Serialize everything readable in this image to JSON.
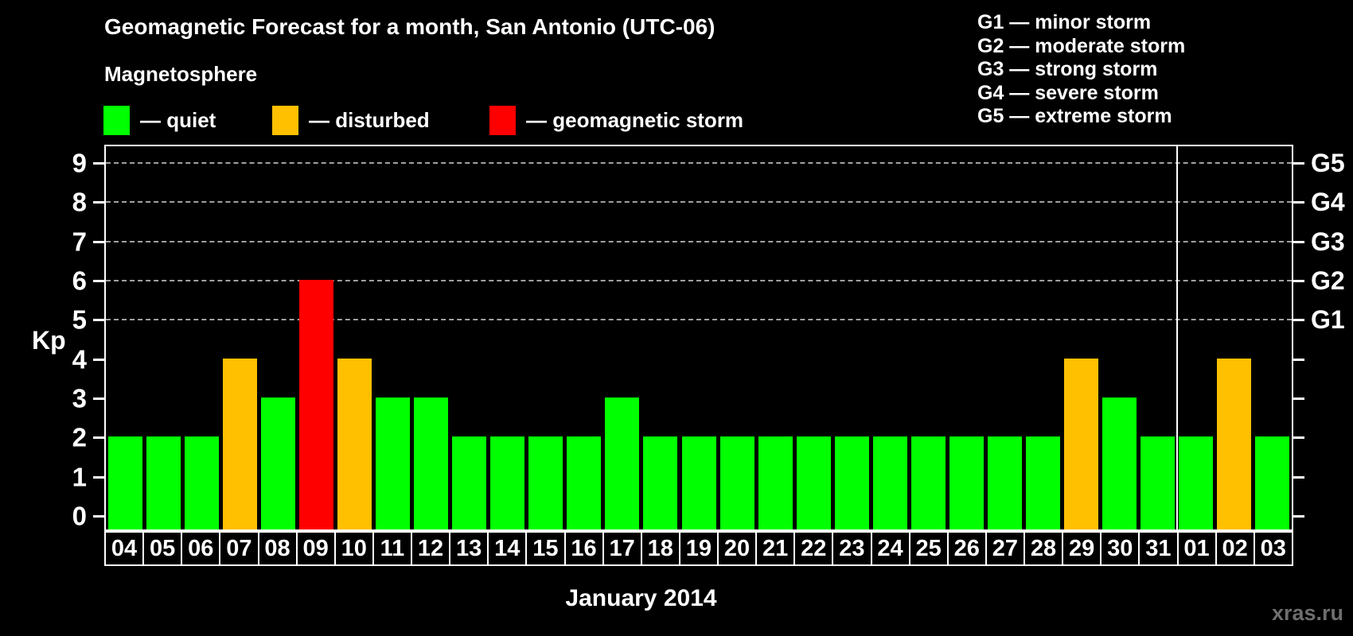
{
  "title": "Geomagnetic Forecast for a month, San Antonio (UTC-06)",
  "subtitle": "Magnetosphere",
  "legend": {
    "items": [
      {
        "status": "quiet",
        "label": "— quiet",
        "color": "#00ff00"
      },
      {
        "status": "disturbed",
        "label": "— disturbed",
        "color": "#ffc000"
      },
      {
        "status": "storm",
        "label": "— geomagnetic storm",
        "color": "#ff0000"
      }
    ]
  },
  "storm_scale": [
    "G1 — minor storm",
    "G2 — moderate storm",
    "G3 — strong storm",
    "G4 — severe storm",
    "G5 — extreme storm"
  ],
  "watermark": "xras.ru",
  "chart_data": {
    "type": "bar",
    "title": "Geomagnetic Forecast for a month, San Antonio (UTC-06)",
    "xlabel": "January 2014",
    "ylabel": "Kp",
    "ylim": [
      0,
      9
    ],
    "yticks": [
      0,
      1,
      2,
      3,
      4,
      5,
      6,
      7,
      8,
      9
    ],
    "gridlines": [
      5,
      6,
      7,
      8,
      9
    ],
    "grid": "dashed horizontal at Kp 5-9 only",
    "legend_position": "top",
    "categories": [
      "04",
      "05",
      "06",
      "07",
      "08",
      "09",
      "10",
      "11",
      "12",
      "13",
      "14",
      "15",
      "16",
      "17",
      "18",
      "19",
      "20",
      "21",
      "22",
      "23",
      "24",
      "25",
      "26",
      "27",
      "28",
      "29",
      "30",
      "31",
      "01",
      "02",
      "03"
    ],
    "values": [
      2,
      2,
      2,
      4,
      3,
      6,
      4,
      3,
      3,
      2,
      2,
      2,
      2,
      3,
      2,
      2,
      2,
      2,
      2,
      2,
      2,
      2,
      2,
      2,
      2,
      4,
      3,
      2,
      2,
      4,
      2
    ],
    "statuses": [
      "quiet",
      "quiet",
      "quiet",
      "disturbed",
      "quiet",
      "storm",
      "disturbed",
      "quiet",
      "quiet",
      "quiet",
      "quiet",
      "quiet",
      "quiet",
      "quiet",
      "quiet",
      "quiet",
      "quiet",
      "quiet",
      "quiet",
      "quiet",
      "quiet",
      "quiet",
      "quiet",
      "quiet",
      "quiet",
      "disturbed",
      "quiet",
      "quiet",
      "quiet",
      "disturbed",
      "quiet"
    ],
    "status_colors": {
      "quiet": "#00ff00",
      "disturbed": "#ffc000",
      "storm": "#ff0000"
    },
    "right_axis": [
      {
        "label": "G1",
        "value": 5
      },
      {
        "label": "G2",
        "value": 6
      },
      {
        "label": "G3",
        "value": 7
      },
      {
        "label": "G4",
        "value": 8
      },
      {
        "label": "G5",
        "value": 9
      }
    ],
    "month_divider_after_index": 27
  }
}
